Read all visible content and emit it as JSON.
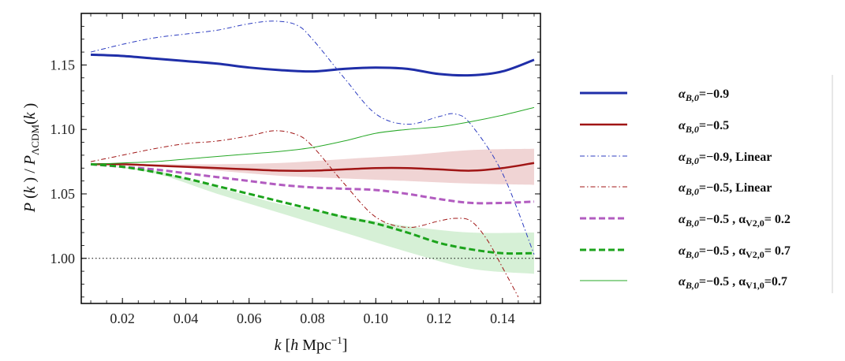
{
  "chart_data": {
    "type": "line",
    "xlabel": "k [h Mpc⁻¹]",
    "ylabel": "P(k) / PΛCDM(k)",
    "xlim": [
      0.007,
      0.152
    ],
    "ylim": [
      0.965,
      1.19
    ],
    "xticks": [
      0.02,
      0.04,
      0.06,
      0.08,
      0.1,
      0.12,
      0.14
    ],
    "xtick_labels": [
      "0.02",
      "0.04",
      "0.06",
      "0.08",
      "0.10",
      "0.12",
      "0.14"
    ],
    "yticks": [
      1.0,
      1.05,
      1.1,
      1.15
    ],
    "ytick_labels": [
      "1.00",
      "1.05",
      "1.10",
      "1.15"
    ],
    "reference_line": {
      "y": 1.0,
      "style": "dotted"
    },
    "bands": [
      {
        "name": "alphaB0=-0.5 band",
        "color": "#f0d4d4",
        "x": [
          0.01,
          0.03,
          0.05,
          0.07,
          0.09,
          0.11,
          0.13,
          0.15
        ],
        "upper": [
          1.073,
          1.073,
          1.073,
          1.074,
          1.077,
          1.08,
          1.084,
          1.085
        ],
        "lower": [
          1.073,
          1.072,
          1.068,
          1.064,
          1.062,
          1.06,
          1.058,
          1.057
        ]
      },
      {
        "name": "alphaV2=0.7 band",
        "color": "#d6f0d6",
        "x": [
          0.01,
          0.03,
          0.05,
          0.07,
          0.09,
          0.11,
          0.13,
          0.15
        ],
        "upper": [
          1.073,
          1.068,
          1.055,
          1.042,
          1.033,
          1.025,
          1.02,
          1.02
        ],
        "lower": [
          1.073,
          1.066,
          1.05,
          1.035,
          1.02,
          1.005,
          0.992,
          0.988
        ]
      }
    ],
    "series": [
      {
        "name": "alphaB0=-0.9",
        "color": "#1f2ea8",
        "width": 3,
        "dash": "",
        "x": [
          0.01,
          0.02,
          0.03,
          0.04,
          0.05,
          0.06,
          0.07,
          0.08,
          0.09,
          0.1,
          0.11,
          0.12,
          0.13,
          0.14,
          0.15
        ],
        "y": [
          1.158,
          1.157,
          1.155,
          1.153,
          1.151,
          1.148,
          1.146,
          1.145,
          1.147,
          1.148,
          1.147,
          1.143,
          1.142,
          1.145,
          1.154
        ]
      },
      {
        "name": "alphaB0=-0.5",
        "color": "#a01515",
        "width": 2.5,
        "dash": "",
        "x": [
          0.01,
          0.02,
          0.03,
          0.04,
          0.05,
          0.06,
          0.07,
          0.08,
          0.09,
          0.1,
          0.11,
          0.12,
          0.13,
          0.14,
          0.15
        ],
        "y": [
          1.073,
          1.073,
          1.072,
          1.071,
          1.07,
          1.069,
          1.068,
          1.068,
          1.069,
          1.07,
          1.07,
          1.069,
          1.068,
          1.07,
          1.074
        ]
      },
      {
        "name": "alphaB0=-0.9, Linear",
        "color": "#2c3cc0",
        "width": 1,
        "dash": "6 3 1.5 3",
        "x": [
          0.01,
          0.02,
          0.03,
          0.04,
          0.05,
          0.06,
          0.068,
          0.075,
          0.08,
          0.09,
          0.1,
          0.11,
          0.12,
          0.125,
          0.13,
          0.14,
          0.15
        ],
        "y": [
          1.16,
          1.166,
          1.171,
          1.174,
          1.177,
          1.182,
          1.184,
          1.181,
          1.17,
          1.14,
          1.112,
          1.104,
          1.11,
          1.112,
          1.104,
          1.066,
          1.003
        ]
      },
      {
        "name": "alphaB0=-0.5, Linear",
        "color": "#a01515",
        "width": 1,
        "dash": "6 3 1.5 3",
        "x": [
          0.01,
          0.02,
          0.03,
          0.04,
          0.05,
          0.06,
          0.068,
          0.075,
          0.08,
          0.09,
          0.1,
          0.11,
          0.12,
          0.125,
          0.13,
          0.135,
          0.14,
          0.145
        ],
        "y": [
          1.075,
          1.08,
          1.085,
          1.089,
          1.091,
          1.095,
          1.099,
          1.096,
          1.087,
          1.058,
          1.032,
          1.024,
          1.029,
          1.031,
          1.029,
          1.015,
          0.993,
          0.97
        ]
      },
      {
        "name": "alphaB0=-0.5, alphaV2=0.2",
        "color": "#b25cc0",
        "width": 3,
        "dash": "8 4",
        "x": [
          0.01,
          0.02,
          0.03,
          0.04,
          0.05,
          0.06,
          0.07,
          0.08,
          0.09,
          0.1,
          0.11,
          0.12,
          0.13,
          0.14,
          0.15
        ],
        "y": [
          1.073,
          1.071,
          1.069,
          1.066,
          1.063,
          1.06,
          1.057,
          1.055,
          1.054,
          1.053,
          1.05,
          1.046,
          1.043,
          1.043,
          1.044
        ]
      },
      {
        "name": "alphaB0=-0.5, alphaV2=0.7",
        "color": "#1ca31c",
        "width": 3,
        "dash": "8 4",
        "x": [
          0.01,
          0.02,
          0.03,
          0.04,
          0.05,
          0.06,
          0.07,
          0.08,
          0.09,
          0.1,
          0.11,
          0.12,
          0.13,
          0.14,
          0.15
        ],
        "y": [
          1.073,
          1.071,
          1.067,
          1.062,
          1.056,
          1.05,
          1.044,
          1.038,
          1.032,
          1.027,
          1.02,
          1.012,
          1.007,
          1.004,
          1.004
        ]
      },
      {
        "name": "alphaB0=-0.5, alphaV1=0.7",
        "color": "#27a827",
        "width": 1,
        "dash": "",
        "x": [
          0.01,
          0.02,
          0.03,
          0.04,
          0.05,
          0.06,
          0.07,
          0.08,
          0.09,
          0.1,
          0.11,
          0.12,
          0.13,
          0.14,
          0.15
        ],
        "y": [
          1.073,
          1.074,
          1.075,
          1.077,
          1.079,
          1.081,
          1.083,
          1.086,
          1.091,
          1.097,
          1.1,
          1.102,
          1.106,
          1.111,
          1.117
        ]
      }
    ],
    "legend": [
      {
        "text": "αB,0=−0.9",
        "main": "α",
        "sub": "B,0",
        "rest": "=−0.9"
      },
      {
        "text": "αB,0=−0.5",
        "main": "α",
        "sub": "B,0",
        "rest": "=−0.5"
      },
      {
        "text": "αB,0=−0.9, Linear",
        "main": "α",
        "sub": "B,0",
        "rest": "=−0.9, Linear"
      },
      {
        "text": "αB,0=−0.5, Linear",
        "main": "α",
        "sub": "B,0",
        "rest": "=−0.5, Linear"
      },
      {
        "text": "αB,0=−0.5 , αV2,0= 0.2",
        "main": "α",
        "sub": "B,0",
        "rest": "=−0.5 , α",
        "sub2": "V2,0",
        "rest2": "= 0.2"
      },
      {
        "text": "αB,0=−0.5 , αV2,0= 0.7",
        "main": "α",
        "sub": "B,0",
        "rest": "=−0.5 , α",
        "sub2": "V2,0",
        "rest2": "= 0.7"
      },
      {
        "text": "αB,0=−0.5 , αV1,0=0.7",
        "main": "α",
        "sub": "B,0",
        "rest": "=−0.5 , α",
        "sub2": "V1,0",
        "rest2": "=0.7"
      }
    ]
  }
}
